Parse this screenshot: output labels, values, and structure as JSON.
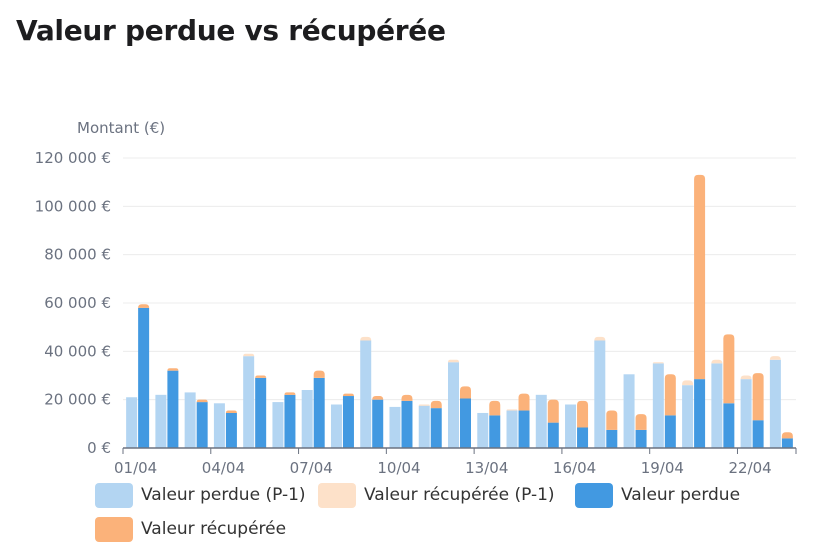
{
  "title": "Valeur perdue vs récupérée",
  "colors": {
    "lost_prev": "#b3d5f2",
    "recovered_prev": "#fde1c9",
    "lost": "#4299e1",
    "recovered": "#fbb27a"
  },
  "chart_data": {
    "type": "bar",
    "title": "Valeur perdue vs récupérée",
    "ylabel": "Montant (€)",
    "ylim": [
      0,
      120000
    ],
    "yticks": [
      0,
      20000,
      40000,
      60000,
      80000,
      100000,
      120000
    ],
    "ytick_labels": [
      "0 €",
      "20 000 €",
      "40 000 €",
      "60 000 €",
      "80 000 €",
      "100 000 €",
      "120 000 €"
    ],
    "categories": [
      "01/04",
      "02/04",
      "03/04",
      "04/04",
      "05/04",
      "06/04",
      "07/04",
      "08/04",
      "09/04",
      "10/04",
      "11/04",
      "12/04",
      "13/04",
      "14/04",
      "15/04",
      "16/04",
      "17/04",
      "18/04",
      "19/04",
      "20/04",
      "21/04",
      "22/04",
      "23/04"
    ],
    "xtick_labels": [
      "01/04",
      "04/04",
      "07/04",
      "10/04",
      "13/04",
      "16/04",
      "19/04",
      "22/04"
    ],
    "grid": true,
    "legend_position": "bottom",
    "series": [
      {
        "name": "Valeur perdue (P-1)",
        "stack": "P-1",
        "values": [
          21000,
          22000,
          23000,
          18500,
          38000,
          19000,
          24000,
          18000,
          44500,
          17000,
          17500,
          35500,
          14500,
          15500,
          22000,
          18000,
          44500,
          30500,
          35000,
          26000,
          35000,
          28500,
          36500
        ]
      },
      {
        "name": "Valeur récupérée (P-1)",
        "stack": "P-1",
        "values": [
          0,
          0,
          0,
          0,
          1000,
          0,
          0,
          0,
          1500,
          0,
          500,
          1000,
          0,
          500,
          0,
          0,
          1500,
          0,
          500,
          2000,
          1500,
          1500,
          1500
        ]
      },
      {
        "name": "Valeur perdue",
        "stack": "current",
        "values": [
          58000,
          32000,
          19000,
          14500,
          29000,
          22000,
          29000,
          21500,
          20000,
          19500,
          16500,
          20500,
          13500,
          15500,
          10500,
          8500,
          7500,
          7500,
          13500,
          28500,
          18500,
          11500,
          4000
        ]
      },
      {
        "name": "Valeur récupérée",
        "stack": "current",
        "values": [
          1500,
          1000,
          1000,
          1000,
          1000,
          1000,
          3000,
          1000,
          1500,
          2500,
          3000,
          5000,
          6000,
          7000,
          9500,
          11000,
          8000,
          6500,
          17000,
          84500,
          28500,
          19500,
          2500
        ]
      }
    ]
  }
}
